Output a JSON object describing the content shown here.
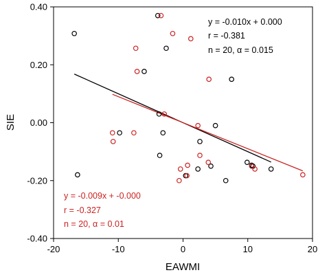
{
  "chart_data": {
    "type": "scatter",
    "xlabel": "EAWMI",
    "ylabel": "SIE",
    "xlim": [
      -20,
      20
    ],
    "ylim": [
      -0.4,
      0.4
    ],
    "x_ticks": [
      -20,
      -10,
      0,
      10,
      20
    ],
    "x_tick_labels": [
      "-20",
      "-10",
      "0",
      "10",
      "20"
    ],
    "y_ticks": [
      -0.4,
      -0.2,
      0.0,
      0.2,
      0.4
    ],
    "y_tick_labels": [
      "-0.40",
      "-0.20",
      "0.00",
      "0.20",
      "0.40"
    ],
    "grid": false,
    "series": [
      {
        "color": "#000000",
        "marker": "open-circle",
        "points": [
          {
            "x": -16.8,
            "y": 0.308
          },
          {
            "x": -16.3,
            "y": -0.18
          },
          {
            "x": -9.8,
            "y": -0.035
          },
          {
            "x": -6.0,
            "y": 0.177
          },
          {
            "x": -3.9,
            "y": 0.37
          },
          {
            "x": -3.7,
            "y": 0.03
          },
          {
            "x": -3.6,
            "y": -0.113
          },
          {
            "x": -3.1,
            "y": -0.035
          },
          {
            "x": -2.6,
            "y": 0.257
          },
          {
            "x": 0.4,
            "y": -0.183
          },
          {
            "x": 2.3,
            "y": -0.16
          },
          {
            "x": 2.6,
            "y": -0.065
          },
          {
            "x": 4.3,
            "y": -0.15
          },
          {
            "x": 5.0,
            "y": -0.01
          },
          {
            "x": 6.6,
            "y": -0.2
          },
          {
            "x": 7.5,
            "y": 0.15
          },
          {
            "x": 9.9,
            "y": -0.137
          },
          {
            "x": 10.6,
            "y": -0.147
          },
          {
            "x": 10.8,
            "y": -0.15
          },
          {
            "x": 13.6,
            "y": -0.16
          }
        ],
        "fit": {
          "x_range": [
            -16.8,
            13.6
          ],
          "slope": -0.01,
          "intercept": 0.0
        }
      },
      {
        "color": "#cc2222",
        "marker": "open-circle",
        "points": [
          {
            "x": -10.9,
            "y": -0.035
          },
          {
            "x": -10.8,
            "y": -0.065
          },
          {
            "x": -7.6,
            "y": -0.035
          },
          {
            "x": -7.3,
            "y": 0.257
          },
          {
            "x": -7.1,
            "y": 0.177
          },
          {
            "x": -3.4,
            "y": 0.37
          },
          {
            "x": -2.9,
            "y": 0.03
          },
          {
            "x": -1.6,
            "y": 0.308
          },
          {
            "x": -0.6,
            "y": -0.2
          },
          {
            "x": -0.4,
            "y": -0.16
          },
          {
            "x": 0.6,
            "y": -0.183
          },
          {
            "x": 0.7,
            "y": -0.147
          },
          {
            "x": 1.2,
            "y": 0.29
          },
          {
            "x": 2.3,
            "y": -0.01
          },
          {
            "x": 2.6,
            "y": -0.113
          },
          {
            "x": 3.9,
            "y": -0.137
          },
          {
            "x": 4.0,
            "y": 0.15
          },
          {
            "x": 10.6,
            "y": -0.15
          },
          {
            "x": 11.1,
            "y": -0.16
          },
          {
            "x": 18.5,
            "y": -0.18
          }
        ],
        "fit": {
          "x_range": [
            -10.9,
            18.5
          ],
          "slope": -0.009,
          "intercept": 0.0
        }
      }
    ],
    "annotations": {
      "black": [
        "y = -0.010x + 0.000",
        "r = -0.381",
        "n = 20, α = 0.015"
      ],
      "red": [
        "y = -0.009x + -0.000",
        "r = -0.327",
        "n = 20, α = 0.01"
      ]
    },
    "colors": {
      "black_series": "#000000",
      "red_series": "#cc2222",
      "axis": "#000000"
    }
  }
}
